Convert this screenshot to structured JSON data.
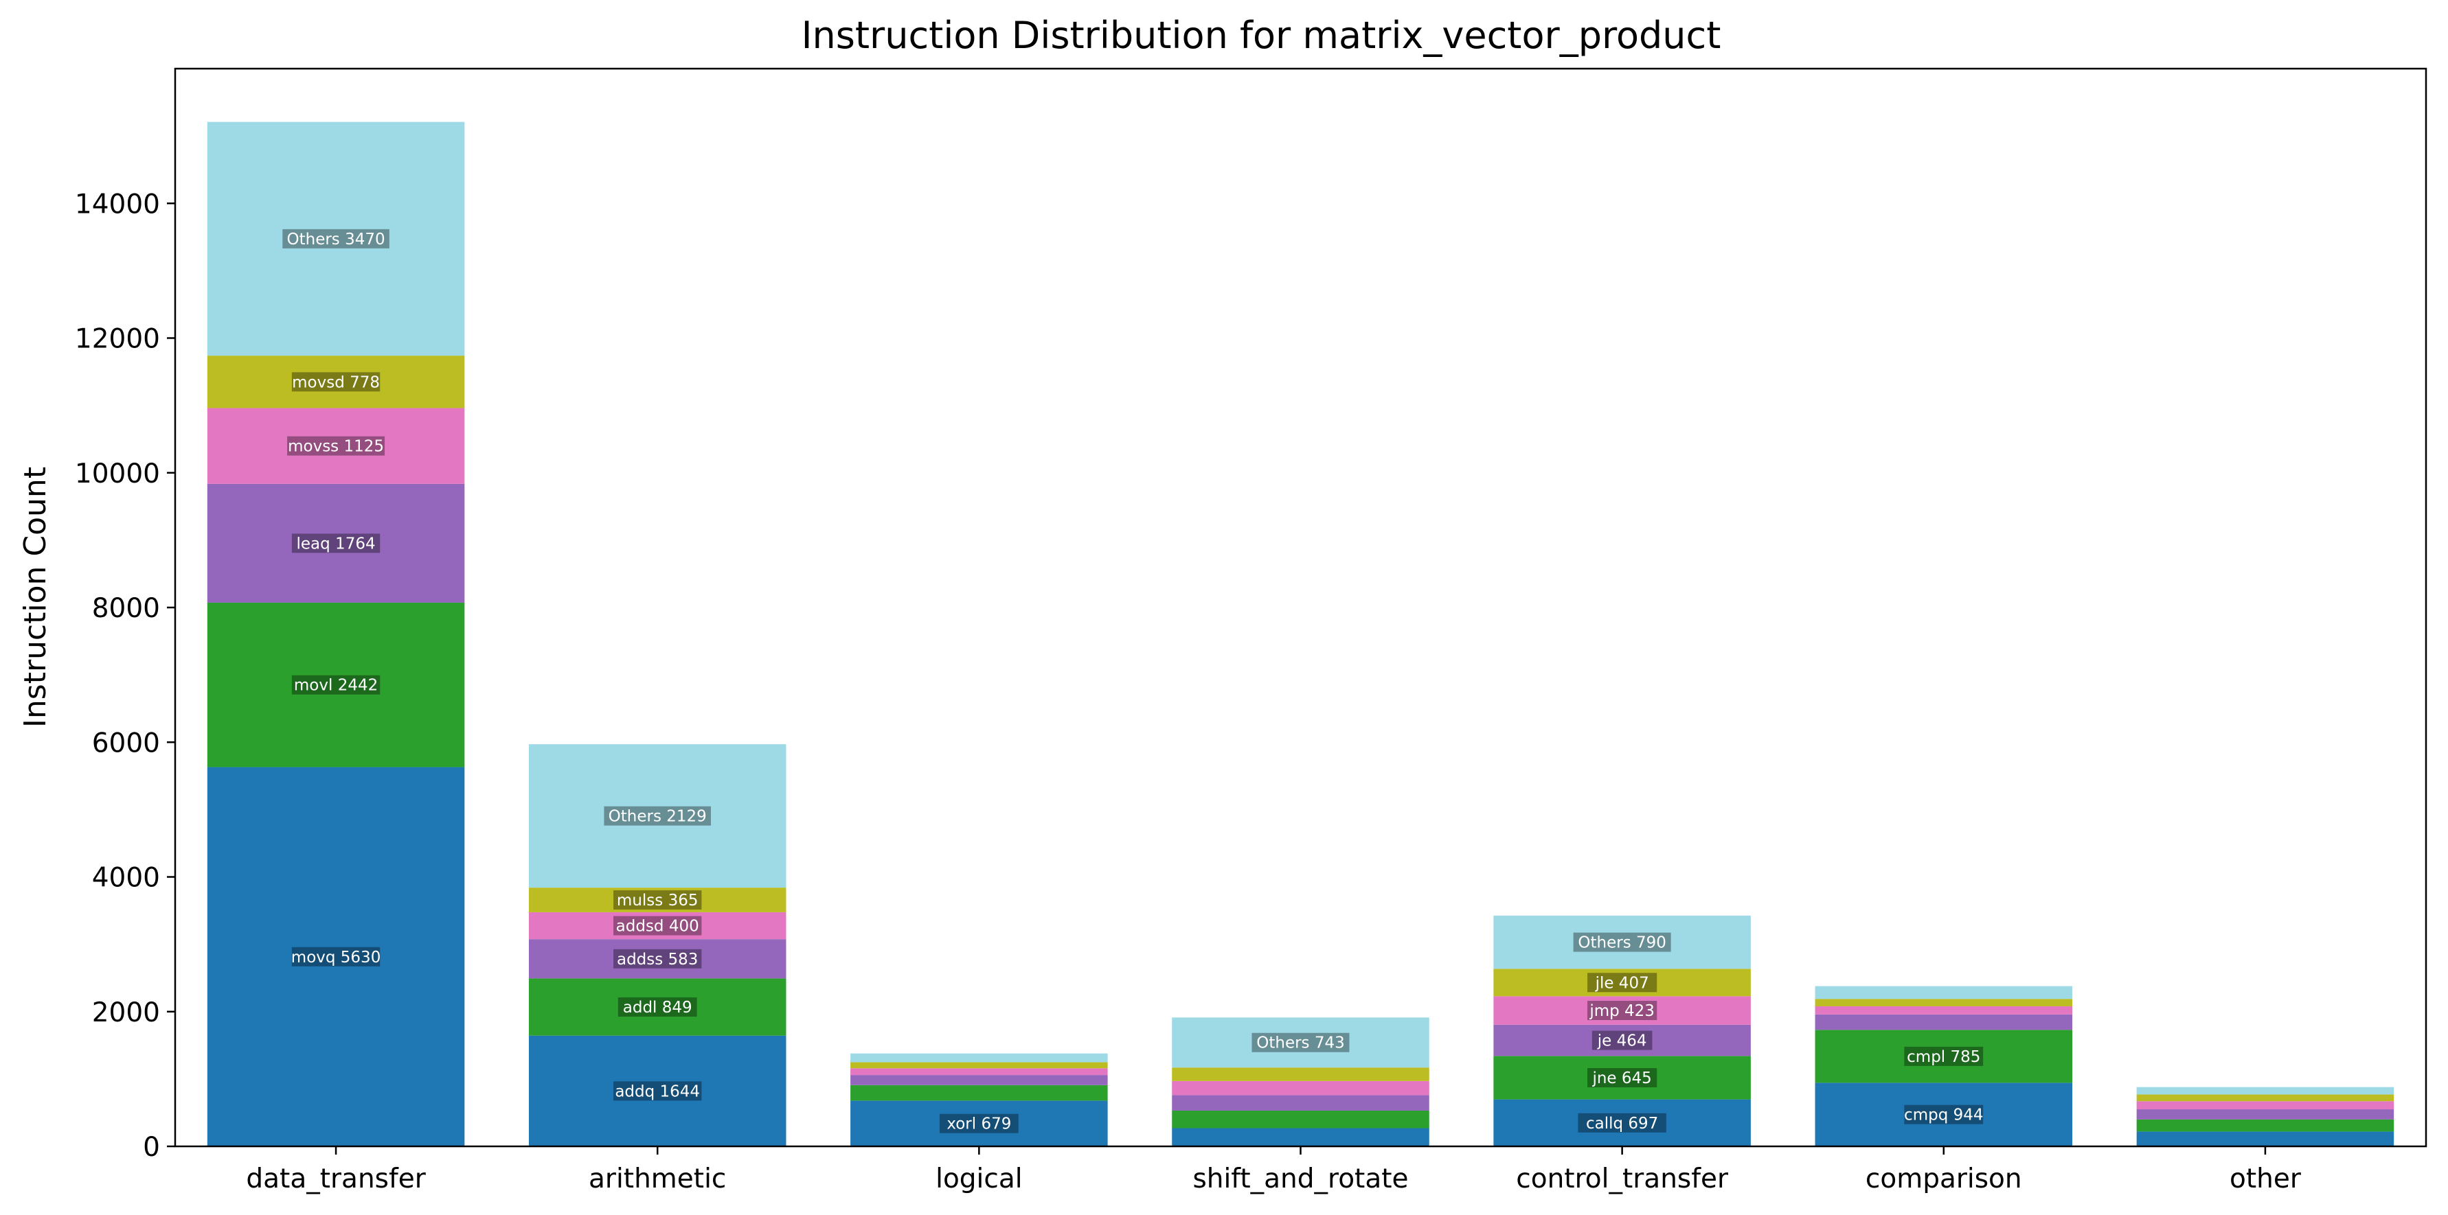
{
  "chart_data": {
    "type": "bar",
    "stacked": true,
    "title": "Instruction Distribution for matrix_vector_product",
    "xlabel": "",
    "ylabel": "Instruction Count",
    "ylim": [
      0,
      16000
    ],
    "yticks": [
      0,
      2000,
      4000,
      6000,
      8000,
      10000,
      12000,
      14000
    ],
    "grid": false,
    "categories": [
      "data_transfer",
      "arithmetic",
      "logical",
      "shift_and_rotate",
      "control_transfer",
      "comparison",
      "other"
    ],
    "colors": [
      "#1f77b4",
      "#2ca02c",
      "#9467bd",
      "#e377c2",
      "#bcbd22",
      "#9edae5"
    ],
    "bars": [
      {
        "category": "data_transfer",
        "segments": [
          {
            "label": "movq 5630",
            "value": 5630
          },
          {
            "label": "movl 2442",
            "value": 2442
          },
          {
            "label": "leaq 1764",
            "value": 1764
          },
          {
            "label": "movss 1125",
            "value": 1125
          },
          {
            "label": "movsd 778",
            "value": 778
          },
          {
            "label": "Others 3470",
            "value": 3470
          }
        ]
      },
      {
        "category": "arithmetic",
        "segments": [
          {
            "label": "addq 1644",
            "value": 1644
          },
          {
            "label": "addl 849",
            "value": 849
          },
          {
            "label": "addss 583",
            "value": 583
          },
          {
            "label": "addsd 400",
            "value": 400
          },
          {
            "label": "mulss 365",
            "value": 365
          },
          {
            "label": "Others 2129",
            "value": 2129
          }
        ]
      },
      {
        "category": "logical",
        "segments": [
          {
            "label": "xorl 679",
            "value": 679
          },
          {
            "label": "",
            "value": 230
          },
          {
            "label": "",
            "value": 150
          },
          {
            "label": "",
            "value": 100
          },
          {
            "label": "",
            "value": 90
          },
          {
            "label": "",
            "value": 130
          }
        ]
      },
      {
        "category": "shift_and_rotate",
        "segments": [
          {
            "label": "",
            "value": 270
          },
          {
            "label": "",
            "value": 260
          },
          {
            "label": "",
            "value": 230
          },
          {
            "label": "",
            "value": 210
          },
          {
            "label": "",
            "value": 200
          },
          {
            "label": "Others 743",
            "value": 743
          }
        ]
      },
      {
        "category": "control_transfer",
        "segments": [
          {
            "label": "callq 697",
            "value": 697
          },
          {
            "label": "jne 645",
            "value": 645
          },
          {
            "label": "je 464",
            "value": 464
          },
          {
            "label": "jmp 423",
            "value": 423
          },
          {
            "label": "jle 407",
            "value": 407
          },
          {
            "label": "Others 790",
            "value": 790
          }
        ]
      },
      {
        "category": "comparison",
        "segments": [
          {
            "label": "cmpq 944",
            "value": 944
          },
          {
            "label": "cmpl 785",
            "value": 785
          },
          {
            "label": "",
            "value": 230
          },
          {
            "label": "",
            "value": 120
          },
          {
            "label": "",
            "value": 110
          },
          {
            "label": "",
            "value": 190
          }
        ]
      },
      {
        "category": "other",
        "segments": [
          {
            "label": "",
            "value": 220
          },
          {
            "label": "",
            "value": 180
          },
          {
            "label": "",
            "value": 150
          },
          {
            "label": "",
            "value": 120
          },
          {
            "label": "",
            "value": 100
          },
          {
            "label": "",
            "value": 110
          }
        ]
      }
    ]
  }
}
